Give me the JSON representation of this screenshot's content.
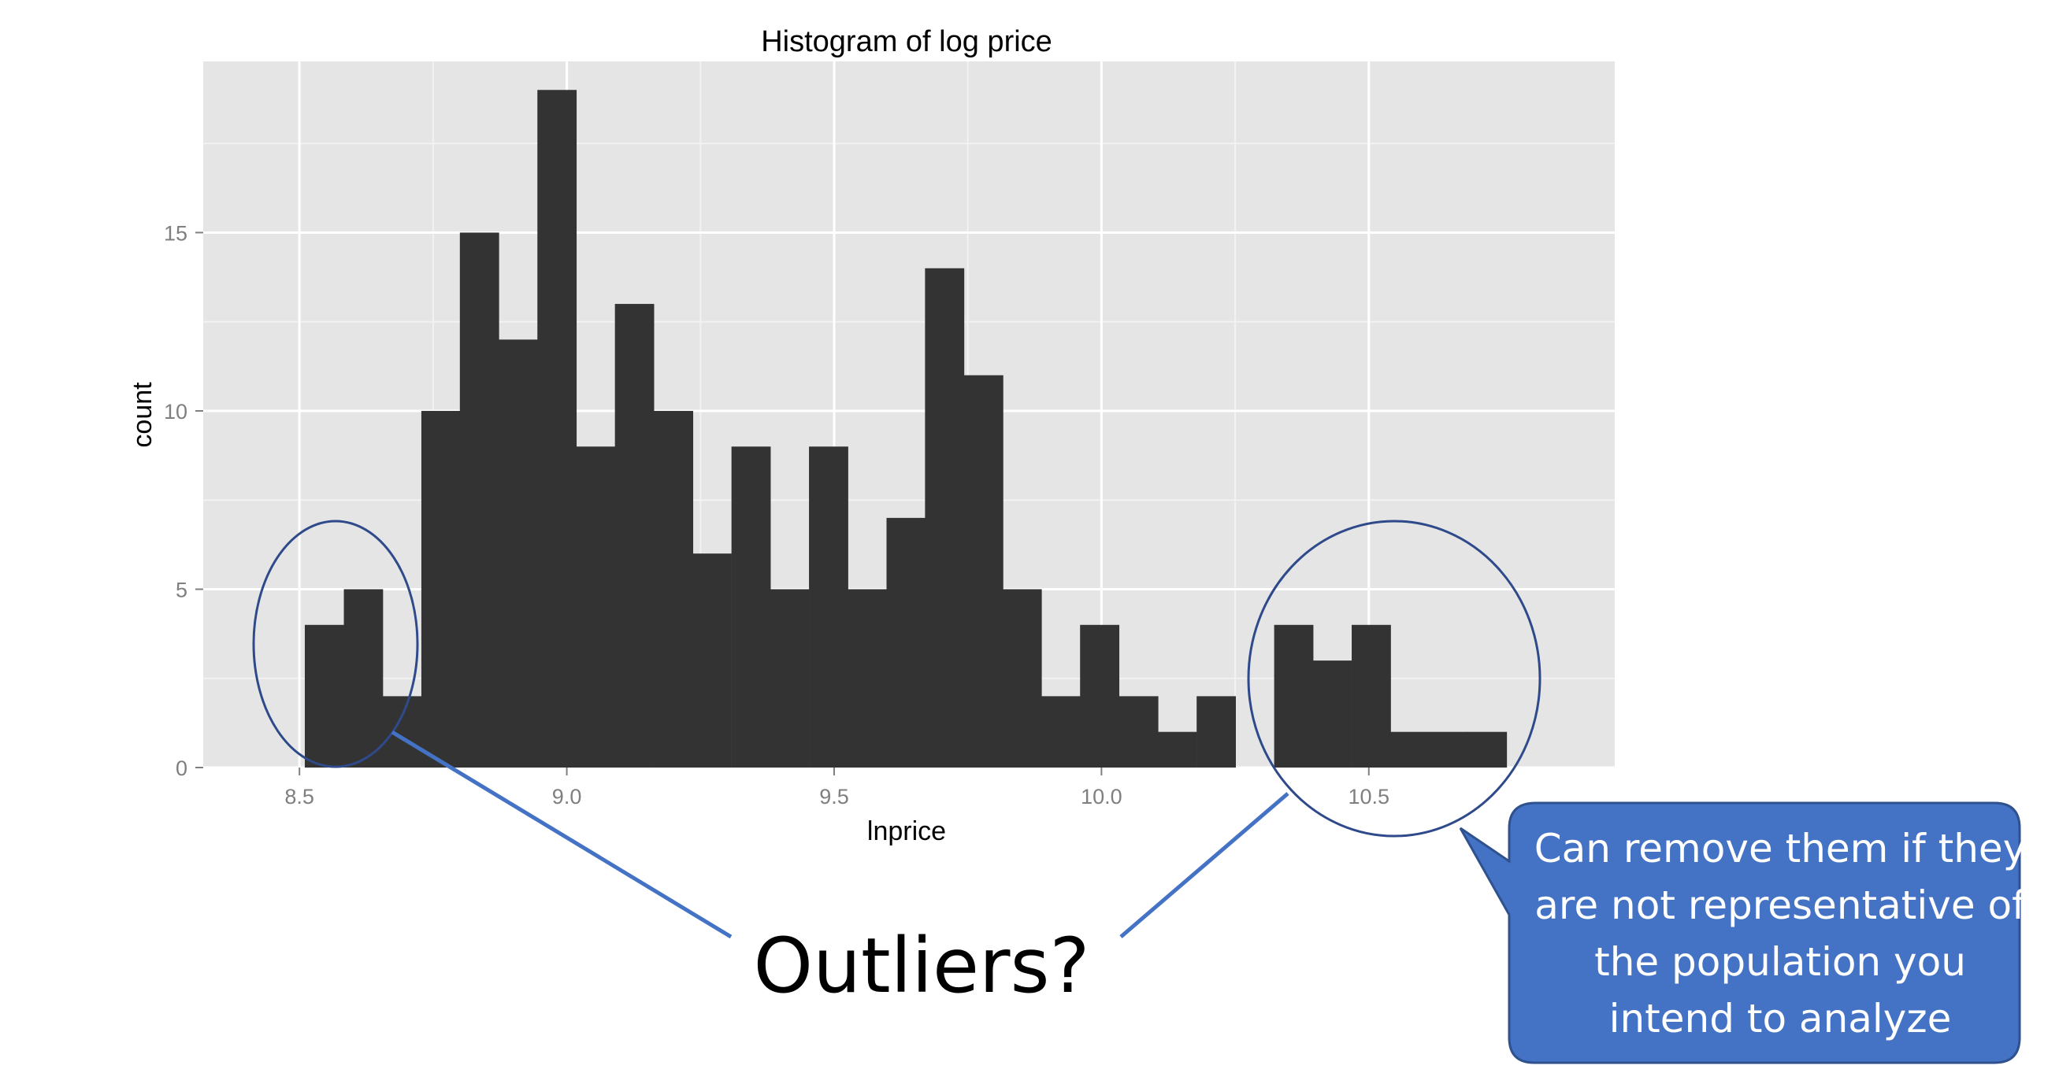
{
  "chart_data": {
    "type": "bar",
    "title": "Histogram of log price",
    "xlabel": "lnprice",
    "ylabel": "count",
    "x_ticks": [
      "8.5",
      "9.0",
      "9.5",
      "10.0",
      "10.5"
    ],
    "y_ticks": [
      "0",
      "5",
      "10",
      "15"
    ],
    "xlim": [
      8.32,
      10.96
    ],
    "ylim": [
      0,
      19.8
    ],
    "bin_width": 0.0725,
    "bins": [
      {
        "start": 8.51,
        "count": 4
      },
      {
        "start": 8.583,
        "count": 5
      },
      {
        "start": 8.655,
        "count": 2
      },
      {
        "start": 8.728,
        "count": 10
      },
      {
        "start": 8.8,
        "count": 15
      },
      {
        "start": 8.873,
        "count": 12
      },
      {
        "start": 8.945,
        "count": 19
      },
      {
        "start": 9.018,
        "count": 9
      },
      {
        "start": 9.09,
        "count": 13
      },
      {
        "start": 9.163,
        "count": 10
      },
      {
        "start": 9.235,
        "count": 6
      },
      {
        "start": 9.308,
        "count": 9
      },
      {
        "start": 9.38,
        "count": 5
      },
      {
        "start": 9.453,
        "count": 9
      },
      {
        "start": 9.525,
        "count": 5
      },
      {
        "start": 9.598,
        "count": 7
      },
      {
        "start": 9.67,
        "count": 14
      },
      {
        "start": 9.743,
        "count": 11
      },
      {
        "start": 9.815,
        "count": 5
      },
      {
        "start": 9.888,
        "count": 2
      },
      {
        "start": 9.96,
        "count": 4
      },
      {
        "start": 10.033,
        "count": 2
      },
      {
        "start": 10.105,
        "count": 1
      },
      {
        "start": 10.178,
        "count": 2
      },
      {
        "start": 10.25,
        "count": 0
      },
      {
        "start": 10.323,
        "count": 4
      },
      {
        "start": 10.395,
        "count": 3
      },
      {
        "start": 10.468,
        "count": 4
      },
      {
        "start": 10.54,
        "count": 1
      },
      {
        "start": 10.613,
        "count": 1
      },
      {
        "start": 10.685,
        "count": 1
      }
    ],
    "grid": true,
    "legend": "none"
  },
  "annotations": {
    "outliers_label": "Outliers?",
    "callout_lines": [
      "Can remove them if they",
      "are not representative of",
      "the population you",
      "intend to analyze"
    ]
  },
  "colors": {
    "panel_bg": "#e5e5e5",
    "grid_major": "#ffffff",
    "grid_minor": "#f2f2f2",
    "bar_fill": "#333333",
    "tick_label": "#7f7f7f",
    "ellipse_stroke": "#2f4a8a",
    "connector": "#4472c4",
    "callout_fill": "#4472c4",
    "callout_stroke": "#2f528f"
  }
}
